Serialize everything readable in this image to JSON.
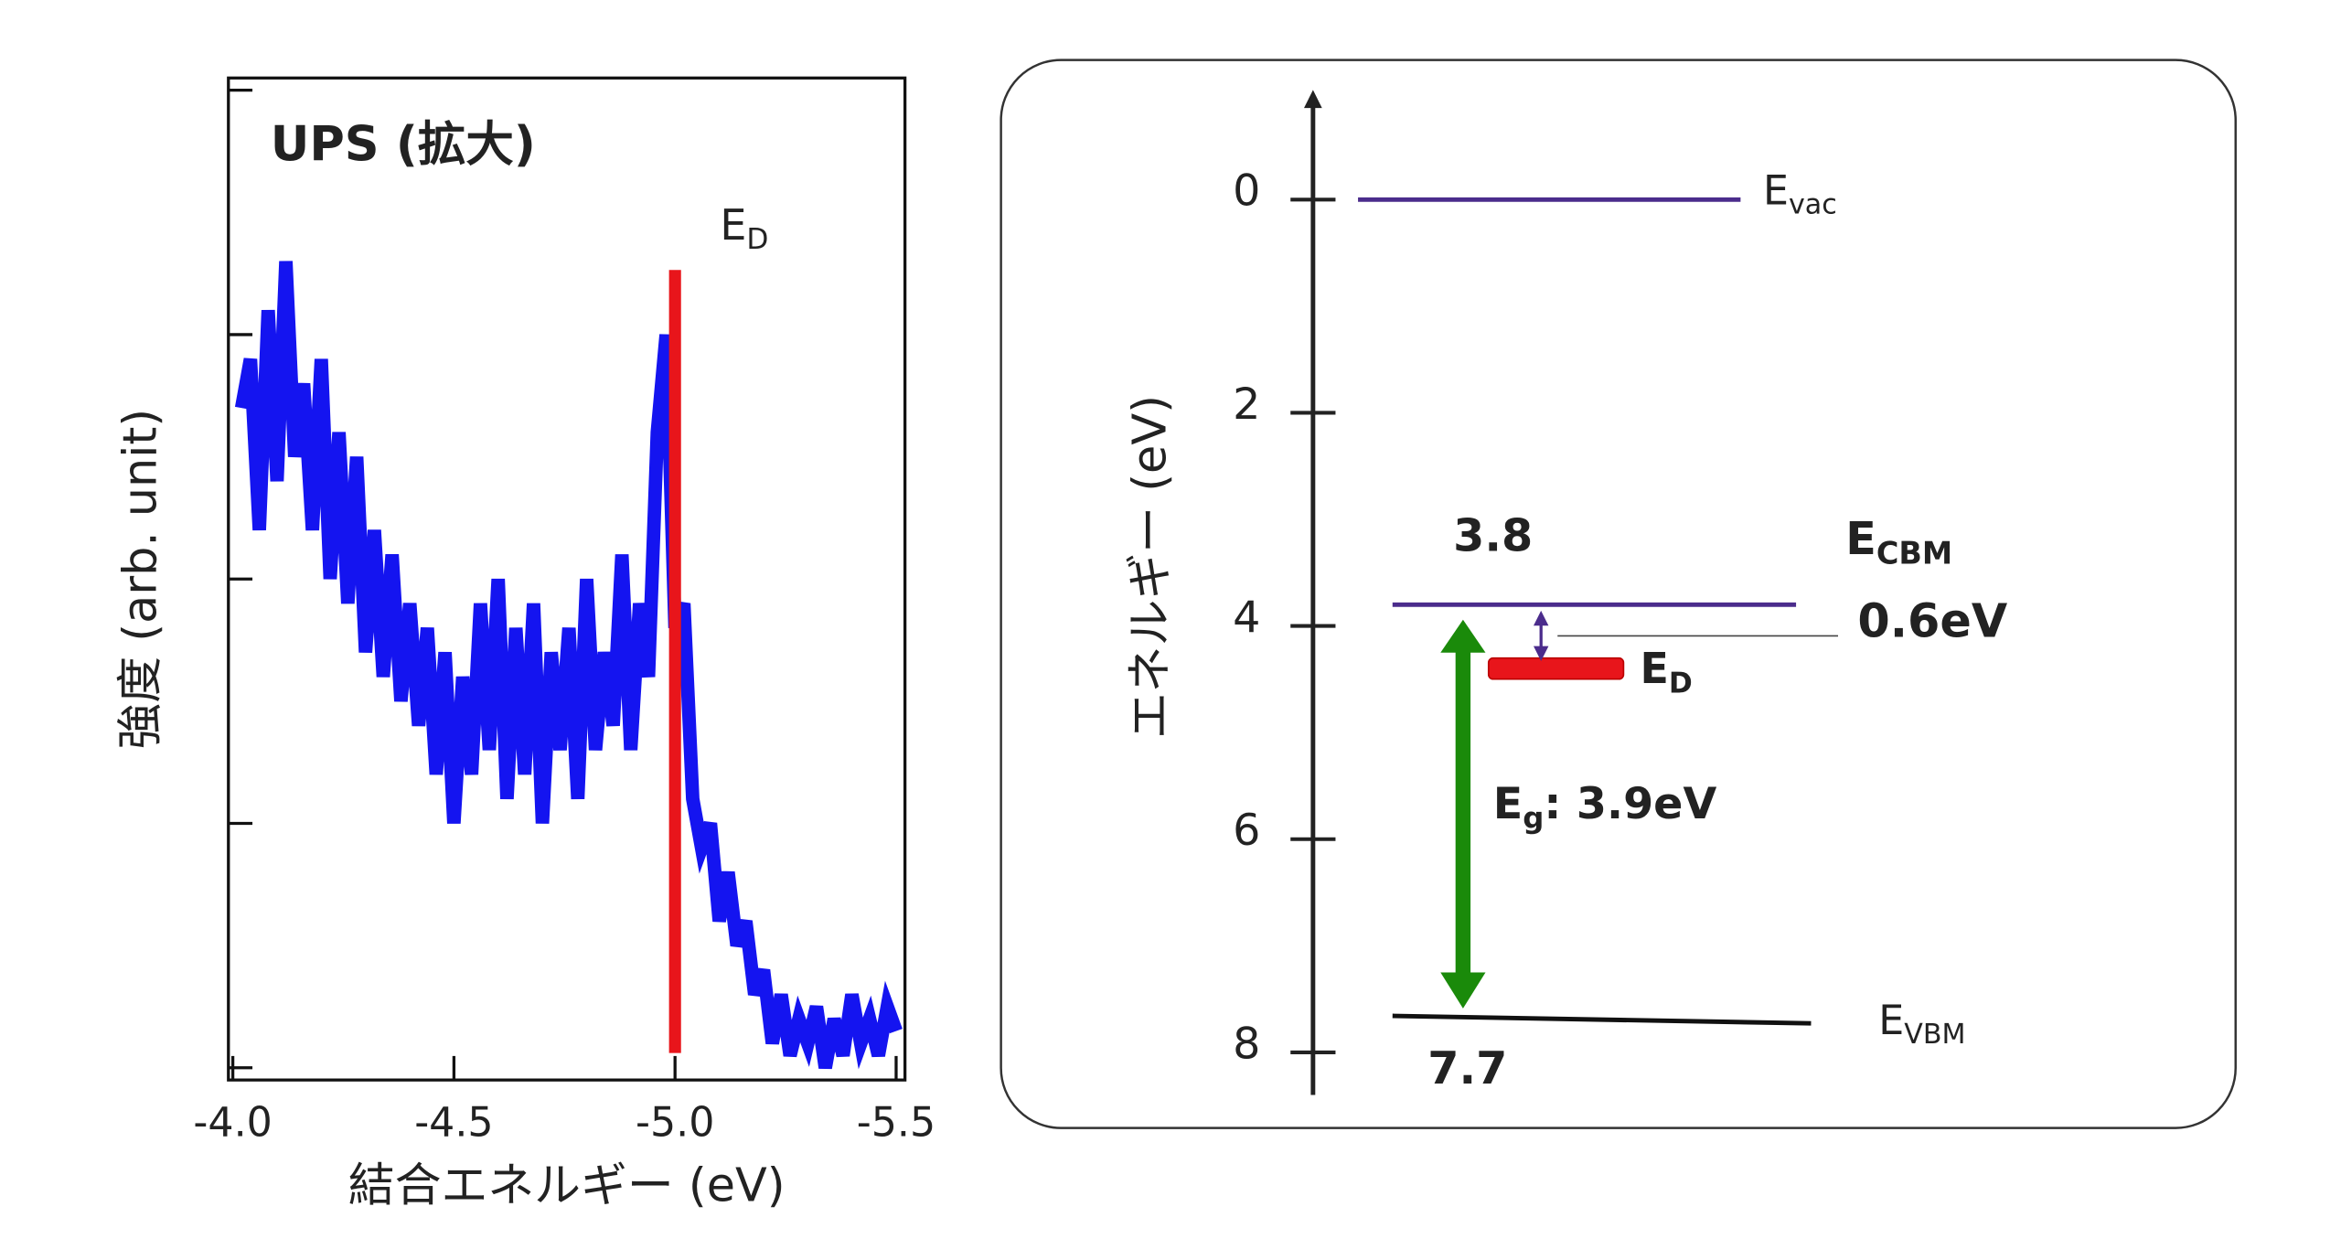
{
  "chart_data": [
    {
      "type": "line",
      "title": "UPS (拡大)",
      "xlabel": "結合エネルギー (eV)",
      "ylabel": "強度 (arb. unit)",
      "xlim": [
        -3.99,
        -5.52
      ],
      "xticks": [
        {
          "value": -4,
          "label": "-4.0"
        },
        -4.5,
        {
          "value": -5,
          "label": "-5.0"
        },
        -5.5
      ],
      "ylim": [
        -0.05,
        4.05
      ],
      "yticks": [
        0,
        1,
        2,
        3,
        4
      ],
      "color": "#1414f0",
      "x": [
        -4.02,
        -4.04,
        -4.06,
        -4.08,
        -4.1,
        -4.12,
        -4.14,
        -4.16,
        -4.18,
        -4.2,
        -4.22,
        -4.24,
        -4.26,
        -4.28,
        -4.3,
        -4.32,
        -4.34,
        -4.36,
        -4.38,
        -4.4,
        -4.42,
        -4.44,
        -4.46,
        -4.48,
        -4.5,
        -4.52,
        -4.54,
        -4.56,
        -4.58,
        -4.6,
        -4.62,
        -4.64,
        -4.66,
        -4.68,
        -4.7,
        -4.72,
        -4.74,
        -4.76,
        -4.78,
        -4.8,
        -4.82,
        -4.84,
        -4.86,
        -4.88,
        -4.9,
        -4.92,
        -4.94,
        -4.96,
        -4.98,
        -5.0,
        -5.02,
        -5.04,
        -5.06,
        -5.08,
        -5.1,
        -5.12,
        -5.14,
        -5.16,
        -5.18,
        -5.2,
        -5.22,
        -5.24,
        -5.26,
        -5.28,
        -5.3,
        -5.32,
        -5.34,
        -5.36,
        -5.38,
        -5.4,
        -5.42,
        -5.44,
        -5.46,
        -5.48,
        -5.5
      ],
      "values": [
        2.7,
        2.9,
        2.2,
        3.1,
        2.4,
        3.3,
        2.5,
        2.8,
        2.2,
        2.9,
        2.0,
        2.6,
        1.9,
        2.5,
        1.7,
        2.2,
        1.6,
        2.1,
        1.5,
        1.9,
        1.4,
        1.8,
        1.2,
        1.7,
        1.0,
        1.6,
        1.2,
        1.9,
        1.3,
        2.0,
        1.1,
        1.8,
        1.2,
        1.9,
        1.0,
        1.7,
        1.3,
        1.8,
        1.1,
        2.0,
        1.3,
        1.7,
        1.4,
        2.1,
        1.3,
        1.9,
        1.6,
        2.6,
        3.0,
        1.8,
        1.9,
        1.1,
        0.9,
        1.0,
        0.6,
        0.8,
        0.5,
        0.6,
        0.3,
        0.4,
        0.1,
        0.3,
        0.05,
        0.2,
        0.1,
        0.25,
        0.0,
        0.2,
        0.05,
        0.3,
        0.1,
        0.2,
        0.05,
        0.25,
        0.15
      ],
      "marker": {
        "x": -5.0,
        "name": "E",
        "sub": "D",
        "color": "#e8151b"
      }
    },
    {
      "type": "energy-diagram",
      "ylabel": "エネルギー (eV)",
      "ylim": [
        8.4,
        -1
      ],
      "yticks": [
        0,
        2,
        4,
        6,
        8
      ],
      "levels": [
        {
          "name": "E",
          "sub": "vac",
          "value": 0,
          "color": "#4b2c8c"
        },
        {
          "name": "E",
          "sub": "CBM",
          "value": 3.8,
          "color": "#4b2c8c",
          "label_color": "#e8151b"
        },
        {
          "name": "E",
          "sub": "VBM",
          "value": 7.7,
          "color": "#111111",
          "label_color": "#1a1ae0"
        },
        {
          "name": "E",
          "sub": "D",
          "value": 4.4,
          "color": "#e8151b"
        }
      ],
      "gap": {
        "value": 0.6,
        "label": "0.6eV",
        "color": "#4b2c8c"
      },
      "bandgap": {
        "value": 3.9,
        "name": "E",
        "sub": "g",
        "label": ": 3.9eV",
        "color": "#1a8a0a"
      }
    }
  ]
}
